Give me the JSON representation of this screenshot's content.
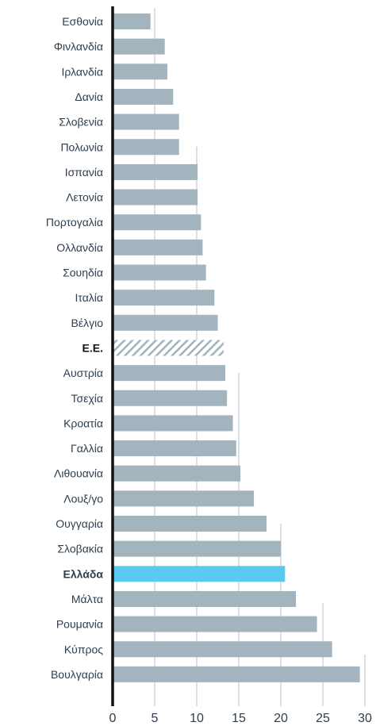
{
  "chart_data": {
    "type": "bar",
    "orientation": "horizontal",
    "categories": [
      "Εσθονία",
      "Φινλανδία",
      "Ιρλανδία",
      "Δανία",
      "Σλοβενία",
      "Πολωνία",
      "Ισπανία",
      "Λετονία",
      "Πορτογαλία",
      "Ολλανδία",
      "Σουηδία",
      "Ιταλία",
      "Βέλγιο",
      "Ε.Ε.",
      "Αυστρία",
      "Τσεχία",
      "Κροατία",
      "Γαλλία",
      "Λιθουανία",
      "Λουξ/γο",
      "Ουγγαρία",
      "Σλοβακία",
      "Ελλάδα",
      "Μάλτα",
      "Ρουμανία",
      "Κύπρος",
      "Βουλγαρία"
    ],
    "values": [
      4.5,
      6.2,
      6.5,
      7.2,
      7.9,
      7.9,
      10.1,
      10.1,
      10.5,
      10.7,
      11.1,
      12.1,
      12.5,
      13.2,
      13.4,
      13.6,
      14.3,
      14.7,
      15.2,
      16.8,
      18.3,
      20.0,
      20.5,
      21.8,
      24.3,
      26.1,
      29.4
    ],
    "xlim": [
      0,
      30
    ],
    "xticks": [
      "0",
      "5",
      "10",
      "15",
      "20",
      "25",
      "30"
    ],
    "highlight": {
      "category": "Ελλάδα",
      "color": "#5bc8ef"
    },
    "special": {
      "category": "Ε.Ε.",
      "style": "hatched"
    },
    "bar_color": "#a3b4be",
    "axis_color": "#111111",
    "grid": "staggered vertical lines at 5-unit steps",
    "title": "",
    "xlabel": "",
    "ylabel": ""
  }
}
